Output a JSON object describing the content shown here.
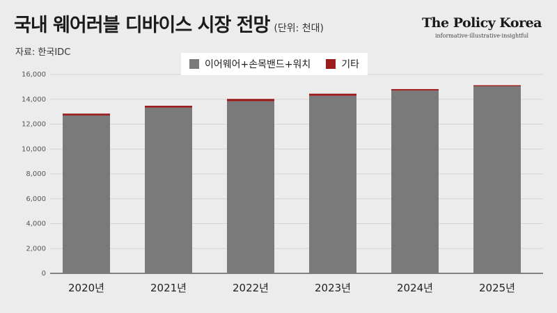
{
  "header": {
    "title": "국내 웨어러블 디바이스 시장 전망",
    "unit": "(단위: 천대)",
    "source": "자료: 한국IDC"
  },
  "brand": {
    "name": "The Policy Korea",
    "tagline": "informative·illustrative·insightful"
  },
  "colors": {
    "main": "#7a7a7a",
    "other": "#9b1c1c",
    "background": "#ececec"
  },
  "chart_data": {
    "type": "bar",
    "stacked": true,
    "categories": [
      "2020년",
      "2021년",
      "2022년",
      "2023년",
      "2024년",
      "2025년"
    ],
    "series": [
      {
        "name": "이어웨어+손목밴드+워치",
        "values": [
          12700,
          13330,
          13850,
          14280,
          14700,
          15050
        ]
      },
      {
        "name": "기타",
        "values": [
          150,
          150,
          180,
          170,
          120,
          80
        ]
      }
    ],
    "ylim": [
      0,
      16000
    ],
    "yticks": [
      "0",
      "2,000",
      "4,000",
      "6,000",
      "8,000",
      "10,000",
      "12,000",
      "14,000",
      "16,000"
    ],
    "ytick_values": [
      0,
      2000,
      4000,
      6000,
      8000,
      10000,
      12000,
      14000,
      16000
    ],
    "grid": true,
    "legend_position": "top"
  }
}
